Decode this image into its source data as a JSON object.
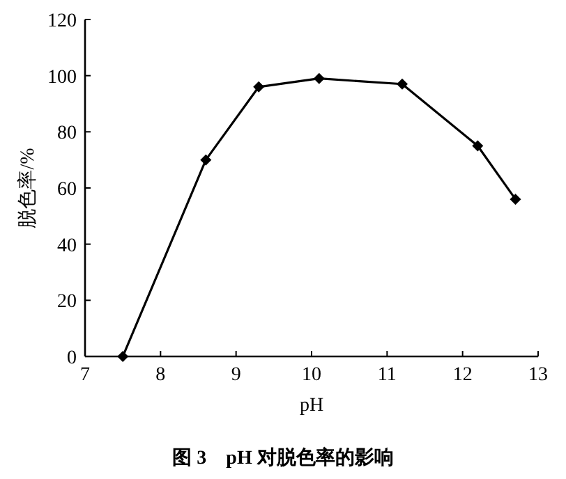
{
  "chart_data": {
    "type": "line",
    "title": "图 3　pH 对脱色率的影响",
    "xlabel": "pH",
    "ylabel": "脱色率/%",
    "xlim": [
      7,
      13
    ],
    "xticks": [
      7,
      8,
      9,
      10,
      11,
      12,
      13
    ],
    "ylim": [
      0,
      120
    ],
    "yticks": [
      0,
      20,
      40,
      60,
      80,
      100,
      120
    ],
    "x": [
      7.5,
      8.6,
      9.3,
      10.1,
      11.2,
      12.2,
      12.7
    ],
    "series": [
      {
        "color": "#000000",
        "values": [
          0,
          70,
          96,
          99,
          97,
          75,
          56
        ]
      }
    ],
    "marker": "diamond",
    "grid": false
  }
}
